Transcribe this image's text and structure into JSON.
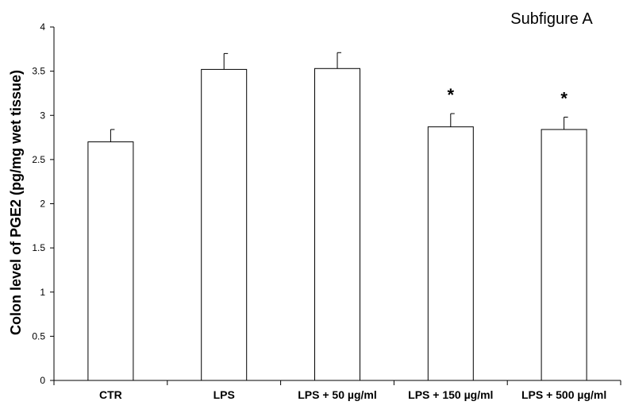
{
  "chart_data": {
    "type": "bar",
    "title": "Subfigure A",
    "xlabel": "",
    "ylabel": "Colon level of PGE2 (pg/mg wet tissue)",
    "ylim": [
      0,
      4
    ],
    "yticks": [
      0,
      0.5,
      1,
      1.5,
      2,
      2.5,
      3,
      3.5,
      4
    ],
    "ytick_labels": [
      "0",
      "0.5",
      "1",
      "1.5",
      "2",
      "2.5",
      "3",
      "3.5",
      "4"
    ],
    "categories": [
      "CTR",
      "LPS",
      "LPS + 50 µg/ml",
      "LPS + 150 µg/ml",
      "LPS + 500 µg/ml"
    ],
    "values": [
      2.7,
      3.52,
      3.53,
      2.87,
      2.84
    ],
    "error_plus": [
      0.14,
      0.18,
      0.18,
      0.15,
      0.14
    ],
    "annotations": [
      "",
      "",
      "",
      "*",
      "*"
    ],
    "grid": false,
    "legend": "none",
    "bar_fill": "#ffffff",
    "bar_stroke": "#000000"
  }
}
